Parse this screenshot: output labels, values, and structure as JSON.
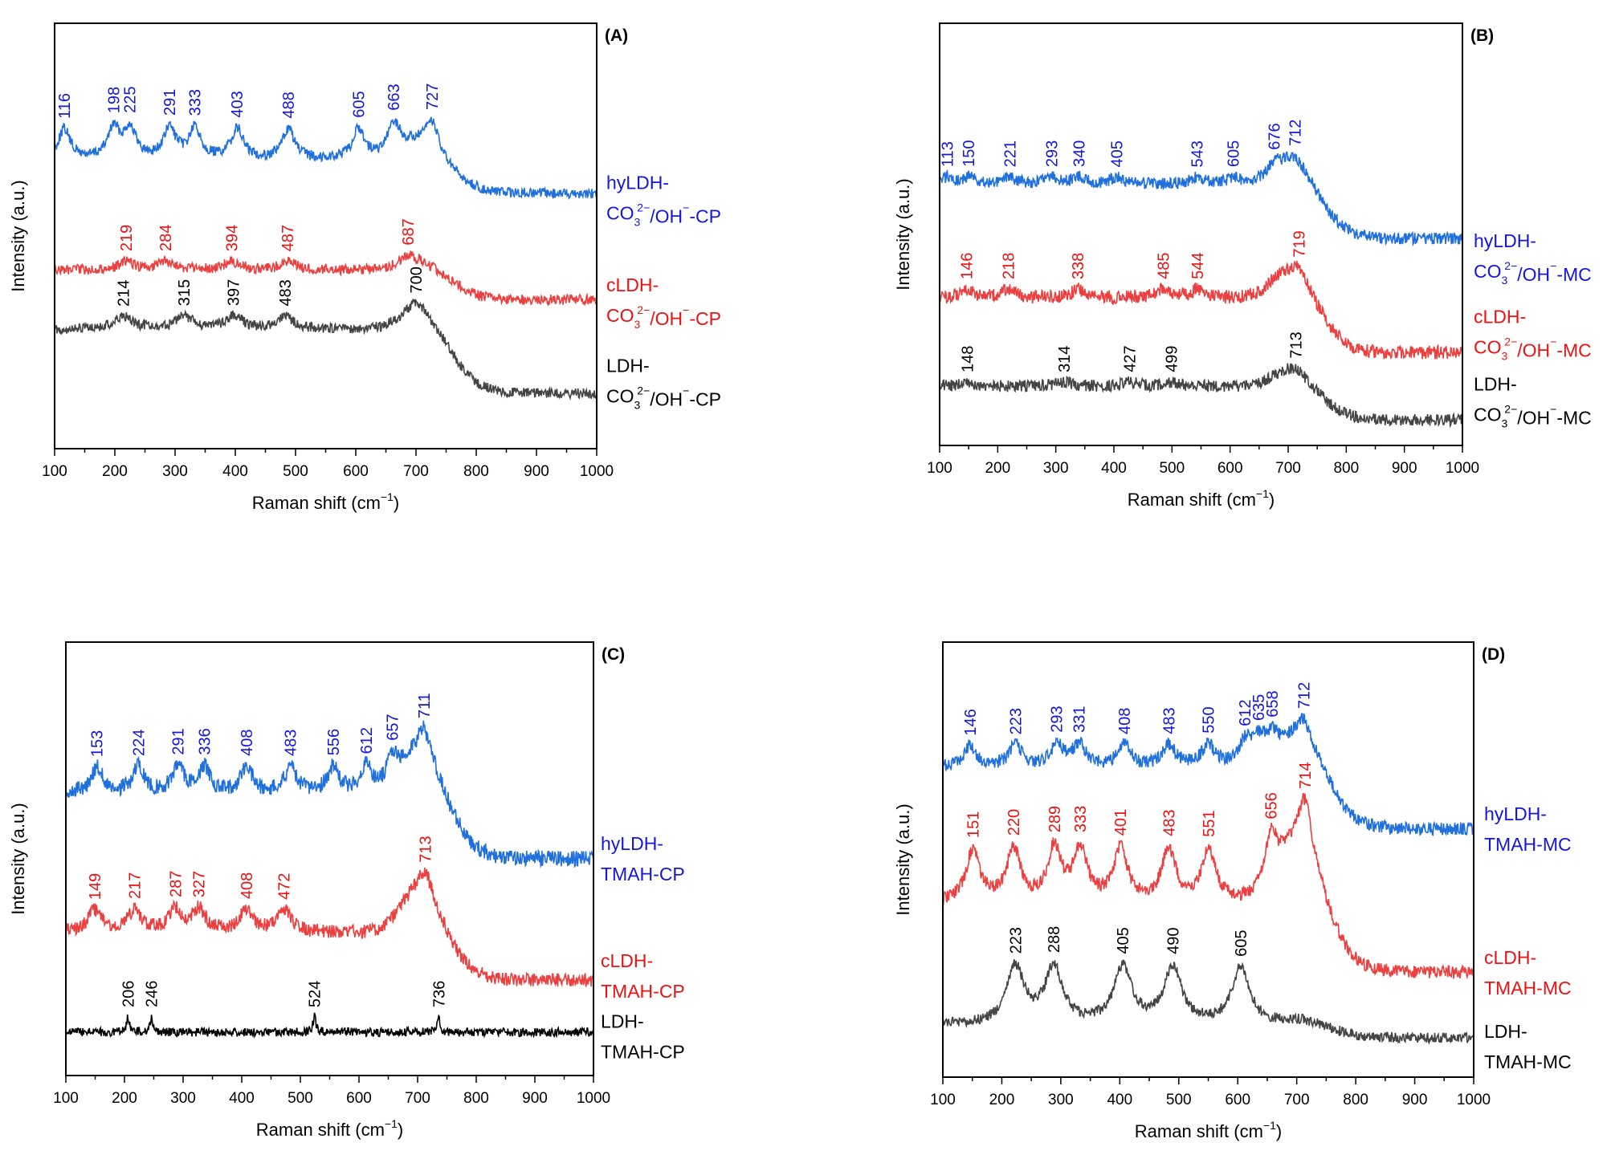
{
  "chart_data": [
    {
      "panel_label": "(A)",
      "type": "line",
      "xlabel_parts": [
        "Raman shift (cm",
        "−1",
        ")"
      ],
      "ylabel": "Intensity (a.u.)",
      "xlim": [
        100,
        1000
      ],
      "xticks": [
        100,
        200,
        300,
        400,
        500,
        600,
        700,
        800,
        900,
        1000
      ],
      "yticks": [],
      "grid": false,
      "legend_placement": "right",
      "series": [
        {
          "name_line1": "hyLDH-",
          "name_line2": [
            [
              "CO",
              ""
            ],
            [
              "3",
              "sub"
            ],
            [
              "2−",
              "sup"
            ],
            [
              "/OH",
              ""
            ],
            [
              "−",
              "sup"
            ],
            [
              "-CP",
              ""
            ]
          ],
          "color": "#1f6fdc",
          "label_color": "#1515e0",
          "peaks": [
            116,
            198,
            225,
            291,
            333,
            403,
            488,
            605,
            663,
            727
          ]
        },
        {
          "name_line1": "cLDH-",
          "name_line2": [
            [
              "CO",
              ""
            ],
            [
              "3",
              "sub"
            ],
            [
              "2−",
              "sup"
            ],
            [
              "/OH",
              ""
            ],
            [
              "−",
              "sup"
            ],
            [
              "-CP",
              ""
            ]
          ],
          "color": "#ec4040",
          "label_color": "#ee1111",
          "peaks": [
            219,
            284,
            394,
            487,
            687
          ]
        },
        {
          "name_line1": "LDH-",
          "name_line2": [
            [
              "CO",
              ""
            ],
            [
              "3",
              "sub"
            ],
            [
              "2−",
              "sup"
            ],
            [
              "/OH",
              ""
            ],
            [
              "−",
              "sup"
            ],
            [
              "-CP",
              ""
            ]
          ],
          "color": "#444444",
          "label_color": "#000000",
          "peaks": [
            214,
            315,
            397,
            483,
            700
          ]
        }
      ]
    },
    {
      "panel_label": "(B)",
      "type": "line",
      "xlabel_parts": [
        "Raman shift (cm",
        "−1",
        ")"
      ],
      "ylabel": "Intensity (a.u.)",
      "xlim": [
        100,
        1000
      ],
      "xticks": [
        100,
        200,
        300,
        400,
        500,
        600,
        700,
        800,
        900,
        1000
      ],
      "yticks": [],
      "grid": false,
      "legend_placement": "right",
      "series": [
        {
          "name_line1": "hyLDH-",
          "name_line2": [
            [
              "CO",
              ""
            ],
            [
              "3",
              "sub"
            ],
            [
              "2−",
              "sup"
            ],
            [
              "/OH",
              ""
            ],
            [
              "−",
              "sup"
            ],
            [
              "-MC",
              ""
            ]
          ],
          "color": "#1f6fdc",
          "label_color": "#1515e0",
          "peaks": [
            113,
            150,
            221,
            293,
            340,
            405,
            676,
            543,
            605,
            712
          ]
        },
        {
          "name_line1": "cLDH-",
          "name_line2": [
            [
              "CO",
              ""
            ],
            [
              "3",
              "sub"
            ],
            [
              "2−",
              "sup"
            ],
            [
              "/OH",
              ""
            ],
            [
              "−",
              "sup"
            ],
            [
              "-MC",
              ""
            ]
          ],
          "color": "#ec4040",
          "label_color": "#ee1111",
          "peaks": [
            146,
            218,
            338,
            485,
            544,
            719
          ]
        },
        {
          "name_line1": "LDH-",
          "name_line2": [
            [
              "CO",
              ""
            ],
            [
              "3",
              "sub"
            ],
            [
              "2−",
              "sup"
            ],
            [
              "/OH",
              ""
            ],
            [
              "−",
              "sup"
            ],
            [
              "-MC",
              ""
            ]
          ],
          "color": "#444444",
          "label_color": "#000000",
          "peaks": [
            148,
            314,
            427,
            499,
            713
          ]
        }
      ]
    },
    {
      "panel_label": "(C)",
      "type": "line",
      "xlabel_parts": [
        "Raman shift (cm",
        "−1",
        ")"
      ],
      "ylabel": "Intensity (a.u.)",
      "xlim": [
        100,
        1000
      ],
      "xticks": [
        100,
        200,
        300,
        400,
        500,
        600,
        700,
        800,
        900,
        1000
      ],
      "yticks": [],
      "grid": false,
      "legend_placement": "right",
      "series": [
        {
          "name_line1": "hyLDH-",
          "name_line2": [
            [
              "TMAH-CP",
              ""
            ]
          ],
          "color": "#1f6fdc",
          "label_color": "#1515e0",
          "peaks": [
            153,
            224,
            291,
            336,
            408,
            483,
            556,
            612,
            657,
            711
          ]
        },
        {
          "name_line1": "cLDH-",
          "name_line2": [
            [
              "TMAH-CP",
              ""
            ]
          ],
          "color": "#ec4040",
          "label_color": "#ee1111",
          "peaks": [
            149,
            217,
            287,
            327,
            408,
            472,
            713
          ]
        },
        {
          "name_line1": "LDH-",
          "name_line2": [
            [
              "TMAH-CP",
              ""
            ]
          ],
          "color": "#000000",
          "label_color": "#000000",
          "peaks": [
            206,
            246,
            524,
            736
          ]
        }
      ]
    },
    {
      "panel_label": "(D)",
      "type": "line",
      "xlabel_parts": [
        "Raman shift (cm",
        "−1",
        ")"
      ],
      "ylabel": "Intensity (a.u.)",
      "xlim": [
        100,
        1000
      ],
      "xticks": [
        100,
        200,
        300,
        400,
        500,
        600,
        700,
        800,
        900,
        1000
      ],
      "yticks": [],
      "grid": false,
      "legend_placement": "right",
      "series": [
        {
          "name_line1": "hyLDH-",
          "name_line2": [
            [
              "TMAH-MC",
              ""
            ]
          ],
          "color": "#1f6fdc",
          "label_color": "#1515e0",
          "peaks": [
            146,
            223,
            293,
            331,
            408,
            483,
            550,
            612,
            635,
            658,
            712
          ]
        },
        {
          "name_line1": "cLDH-",
          "name_line2": [
            [
              "TMAH-MC",
              ""
            ]
          ],
          "color": "#ec4040",
          "label_color": "#ee1111",
          "peaks": [
            151,
            220,
            289,
            333,
            401,
            483,
            551,
            656,
            714
          ]
        },
        {
          "name_line1": "LDH-",
          "name_line2": [
            [
              "TMAH-MC",
              ""
            ]
          ],
          "color": "#444444",
          "label_color": "#000000",
          "peaks": [
            223,
            288,
            405,
            490,
            605
          ]
        }
      ]
    }
  ]
}
